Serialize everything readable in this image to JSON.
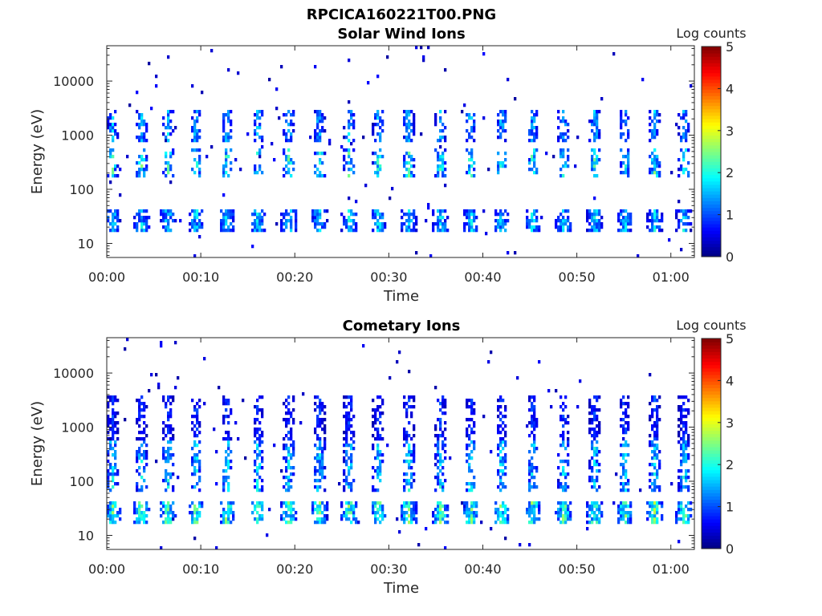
{
  "figure_title": "RPCICA160221T00.PNG",
  "chart_data": [
    {
      "type": "heatmap",
      "title": "Solar Wind Ions",
      "xlabel": "Time",
      "ylabel": "Energy (eV)",
      "x_ticks": [
        "00:00",
        "00:10",
        "00:20",
        "00:30",
        "00:40",
        "00:50",
        "01:00"
      ],
      "x_range_minutes": [
        0,
        62.5
      ],
      "y_scale": "log",
      "y_ticks": [
        "10",
        "100",
        "1000",
        "10000"
      ],
      "y_range": [
        5.5,
        45000
      ],
      "colorbar": {
        "label": "Log counts",
        "range": [
          0,
          5
        ],
        "ticks": [
          "0",
          "1",
          "2",
          "3",
          "4",
          "5"
        ],
        "colormap": "jet"
      },
      "sweep_times_min": [
        0.6,
        3.7,
        6.5,
        9.5,
        12.8,
        16.1,
        19.4,
        22.6,
        25.8,
        28.9,
        32.1,
        35.5,
        38.7,
        42.0,
        45.3,
        48.6,
        51.9,
        55.1,
        58.3,
        61.4
      ],
      "bands": [
        {
          "name": "low",
          "e_min": 16,
          "e_max": 45,
          "peak_log_counts": 2.2
        },
        {
          "name": "mid",
          "e_min": 170,
          "e_max": 600,
          "peak_log_counts": 2.7
        },
        {
          "name": "high",
          "e_min": 700,
          "e_max": 2800,
          "peak_log_counts": 2.0
        }
      ]
    },
    {
      "type": "heatmap",
      "title": "Cometary Ions",
      "xlabel": "Time",
      "ylabel": "Energy (eV)",
      "x_ticks": [
        "00:00",
        "00:10",
        "00:20",
        "00:30",
        "00:40",
        "00:50",
        "01:00"
      ],
      "x_range_minutes": [
        0,
        62.5
      ],
      "y_scale": "log",
      "y_ticks": [
        "10",
        "100",
        "1000",
        "10000"
      ],
      "y_range": [
        5.5,
        45000
      ],
      "colorbar": {
        "label": "Log counts",
        "range": [
          0,
          5
        ],
        "ticks": [
          "0",
          "1",
          "2",
          "3",
          "4",
          "5"
        ],
        "colormap": "jet"
      },
      "sweep_times_min": [
        0.6,
        3.7,
        6.5,
        9.5,
        12.8,
        16.1,
        19.4,
        22.6,
        25.8,
        28.9,
        32.1,
        35.5,
        38.7,
        42.0,
        45.3,
        48.6,
        51.9,
        55.1,
        58.3,
        61.4
      ],
      "bands": [
        {
          "name": "low",
          "e_min": 16,
          "e_max": 45,
          "peak_log_counts": 3.0
        },
        {
          "name": "mid",
          "e_min": 60,
          "e_max": 550,
          "peak_log_counts": 2.3
        },
        {
          "name": "high",
          "e_min": 600,
          "e_max": 4000,
          "peak_log_counts": 1.2
        }
      ]
    }
  ]
}
